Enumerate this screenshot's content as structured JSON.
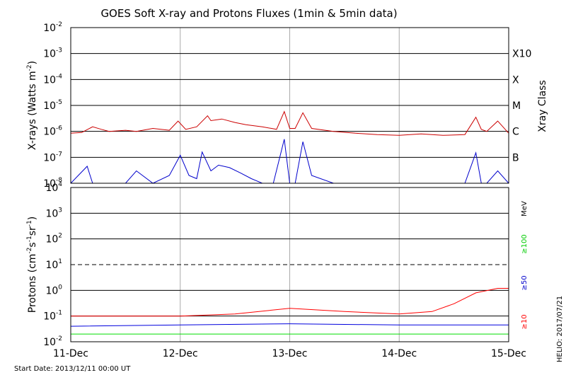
{
  "chart_data": [
    {
      "type": "line",
      "title": "GOES Soft X-ray and Protons Fluxes   (1min & 5min data)",
      "ylabel": {
        "main": "X-rays (Watts m",
        "sup": "-2",
        "close": ")"
      },
      "yscale": "log",
      "ylim": [
        1e-08,
        0.01
      ],
      "ytick_labels": [
        {
          "base": "10",
          "exp": "-2"
        },
        {
          "base": "10",
          "exp": "-3"
        },
        {
          "base": "10",
          "exp": "-4"
        },
        {
          "base": "10",
          "exp": "-5"
        },
        {
          "base": "10",
          "exp": "-6"
        },
        {
          "base": "10",
          "exp": "-7"
        },
        {
          "base": "10",
          "exp": "-8"
        }
      ],
      "right_axis_title": "Xray Class",
      "class_labels": [
        "X10",
        "X",
        "M",
        "C",
        "B"
      ],
      "x_day_range": [
        0,
        4
      ],
      "series": [
        {
          "color": "#cc0000",
          "x": [
            0,
            0.1,
            0.2,
            0.28,
            0.35,
            0.5,
            0.6,
            0.75,
            0.9,
            0.98,
            1.05,
            1.15,
            1.25,
            1.28,
            1.38,
            1.5,
            1.6,
            1.75,
            1.88,
            1.95,
            2.0,
            2.05,
            2.12,
            2.2,
            2.4,
            2.6,
            2.8,
            3.0,
            3.2,
            3.4,
            3.6,
            3.7,
            3.75,
            3.8,
            3.9,
            4.0
          ],
          "y": [
            8.5e-07,
            9e-07,
            1.5e-06,
            1.2e-06,
            1e-06,
            1.1e-06,
            1e-06,
            1.3e-06,
            1.1e-06,
            2.5e-06,
            1.2e-06,
            1.5e-06,
            4e-06,
            2.6e-06,
            3e-06,
            2.2e-06,
            1.8e-06,
            1.5e-06,
            1.2e-06,
            5.8e-06,
            1.3e-06,
            1.3e-06,
            5.2e-06,
            1.3e-06,
            1e-06,
            8.5e-07,
            7.5e-07,
            7e-07,
            8e-07,
            7e-07,
            7.5e-07,
            3.5e-06,
            1.2e-06,
            1e-06,
            2.5e-06,
            8.5e-07
          ]
        },
        {
          "color": "#0000cc",
          "x": [
            0,
            0.15,
            0.2,
            0.25,
            0.5,
            0.6,
            0.75,
            0.9,
            1.0,
            1.08,
            1.15,
            1.2,
            1.28,
            1.35,
            1.45,
            1.55,
            1.65,
            1.75,
            1.85,
            1.95,
            2.0,
            2.05,
            2.12,
            2.2,
            2.4,
            2.6,
            2.8,
            3.0,
            3.2,
            3.4,
            3.6,
            3.7,
            3.75,
            3.8,
            3.9,
            4.0
          ],
          "y": [
            1e-08,
            4.5e-08,
            1e-08,
            1e-08,
            1e-08,
            3e-08,
            1e-08,
            2e-08,
            1.2e-07,
            2e-08,
            1.5e-08,
            1.6e-07,
            3e-08,
            5e-08,
            4e-08,
            2.5e-08,
            1.5e-08,
            1e-08,
            1e-08,
            5e-07,
            1e-08,
            1e-08,
            4e-07,
            2e-08,
            1e-08,
            1e-08,
            1e-08,
            1e-08,
            1e-08,
            1e-08,
            1e-08,
            1.5e-07,
            1e-08,
            1e-08,
            3e-08,
            1e-08
          ]
        }
      ]
    },
    {
      "type": "line",
      "ylabel": {
        "main": "Protons (cm",
        "sup1": "-2",
        "mid1": "s",
        "sup2": "-1",
        "mid2": "sr",
        "sup3": "-1",
        "close": ")"
      },
      "yscale": "log",
      "ylim": [
        0.01,
        10000
      ],
      "ytick_labels": [
        {
          "base": "10",
          "exp": "4"
        },
        {
          "base": "10",
          "exp": "3"
        },
        {
          "base": "10",
          "exp": "2"
        },
        {
          "base": "10",
          "exp": "1"
        },
        {
          "base": "10",
          "exp": "0"
        },
        {
          "base": "10",
          "exp": "-1"
        },
        {
          "base": "10",
          "exp": "-2"
        }
      ],
      "threshold": 10,
      "energy_unit": "MeV",
      "energy_labels": [
        {
          "text": "≥100",
          "color": "#00cc00"
        },
        {
          "text": "≥50",
          "color": "#0000cc"
        },
        {
          "text": "≥10",
          "color": "#ff0000"
        }
      ],
      "series": [
        {
          "color": "#00dd00",
          "x": [
            0,
            1,
            2,
            3,
            4
          ],
          "y": [
            0.02,
            0.02,
            0.02,
            0.02,
            0.02
          ]
        },
        {
          "color": "#0000dd",
          "x": [
            0,
            1,
            2,
            3,
            4
          ],
          "y": [
            0.04,
            0.045,
            0.05,
            0.045,
            0.045
          ]
        },
        {
          "color": "#ff0000",
          "x": [
            0,
            0.5,
            1.0,
            1.5,
            2.0,
            2.5,
            3.0,
            3.3,
            3.5,
            3.7,
            3.9,
            4.0
          ],
          "y": [
            0.1,
            0.1,
            0.1,
            0.12,
            0.2,
            0.15,
            0.12,
            0.15,
            0.3,
            0.8,
            1.2,
            1.2
          ]
        }
      ]
    }
  ],
  "x_tick_labels": [
    "11-Dec",
    "12-Dec",
    "13-Dec",
    "14-Dec",
    "15-Dec"
  ],
  "footer": {
    "start_date": "Start Date: 2013/12/11 00:00 UT",
    "credit": "HELIO: 2017/07/21"
  }
}
